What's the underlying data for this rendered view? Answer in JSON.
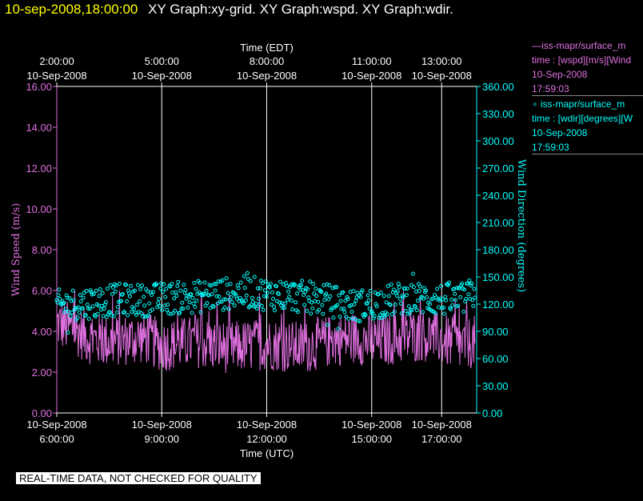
{
  "header": {
    "timestamp": "10-sep-2008,18:00:00",
    "graph_titles": "XY Graph:xy-grid.  XY Graph:wspd.  XY Graph:wdir."
  },
  "legend": [
    {
      "lines": [
        "—iss-mapr/surface_m",
        "time : [wspd][m/s][Wind",
        "10-Sep-2008",
        "17:59:03"
      ],
      "color": "#e070e0"
    },
    {
      "lines": [
        "∘ iss-mapr/surface_m",
        "time : [wdir][degrees][W",
        "10-Sep-2008",
        "17:59:03"
      ],
      "color": "#00ffff"
    }
  ],
  "disclaimer": "REAL-TIME DATA, NOT CHECKED FOR QUALITY",
  "chart_data": {
    "type": "line",
    "top_axis": {
      "label": "Time (EDT)",
      "ticks": [
        {
          "x": 6.0,
          "time": "2:00:00",
          "date": "10-Sep-2008"
        },
        {
          "x": 9.0,
          "time": "5:00:00",
          "date": "10-Sep-2008"
        },
        {
          "x": 12.0,
          "time": "8:00:00",
          "date": "10-Sep-2008"
        },
        {
          "x": 15.0,
          "time": "11:00:00",
          "date": "10-Sep-2008"
        },
        {
          "x": 17.0,
          "time": "13:00:00",
          "date": "10-Sep-2008"
        }
      ]
    },
    "bottom_axis": {
      "label": "Time (UTC)",
      "unit": "hours UTC",
      "range": [
        6.0,
        18.0
      ],
      "ticks": [
        {
          "x": 6.0,
          "date": "10-Sep-2008",
          "time": "6:00:00"
        },
        {
          "x": 9.0,
          "date": "10-Sep-2008",
          "time": "9:00:00"
        },
        {
          "x": 12.0,
          "date": "10-Sep-2008",
          "time": "12:00:00"
        },
        {
          "x": 15.0,
          "date": "10-Sep-2008",
          "time": "15:00:00"
        },
        {
          "x": 17.0,
          "date": "10-Sep-2008",
          "time": "17:00:00"
        }
      ]
    },
    "left_axis": {
      "label": "Wind Speed (m/s)",
      "range": [
        0,
        16
      ],
      "ticks": [
        "0.00",
        "2.00",
        "4.00",
        "6.00",
        "8.00",
        "10.00",
        "12.00",
        "14.00",
        "16.00"
      ],
      "color": "#e070e0"
    },
    "right_axis": {
      "label": "Wind Direction (degrees)",
      "range": [
        0,
        360
      ],
      "ticks": [
        "0.00",
        "30.00",
        "60.00",
        "90.00",
        "120.00",
        "150.00",
        "180.00",
        "210.00",
        "240.00",
        "270.00",
        "300.00",
        "330.00",
        "360.00"
      ],
      "color": "#00ffff"
    },
    "grid": "vertical lines at bottom-axis ticks",
    "series": [
      {
        "name": "iss-mapr/surface_m time : [wspd][m/s][Wind",
        "axis": "left",
        "type": "line",
        "color": "#e070e0",
        "approx_summary": "Wind speed fluctuates roughly 1-6 m/s around a mean near 3.5 m/s from 6:00 to ~18:00 UTC",
        "x": [
          6.0,
          6.5,
          7.0,
          7.5,
          8.0,
          8.5,
          9.0,
          9.5,
          10.0,
          10.5,
          11.0,
          11.5,
          12.0,
          12.5,
          13.0,
          13.5,
          14.0,
          14.5,
          15.0,
          15.5,
          16.0,
          16.5,
          17.0,
          17.5,
          17.95
        ],
        "y": [
          4.4,
          4.1,
          3.6,
          3.5,
          3.6,
          3.7,
          3.3,
          3.4,
          3.5,
          3.3,
          3.2,
          3.3,
          3.4,
          3.3,
          3.2,
          3.4,
          3.6,
          3.7,
          3.5,
          3.6,
          3.7,
          3.8,
          3.6,
          3.3,
          3.5
        ]
      },
      {
        "name": "iss-mapr/surface_m time : [wdir][degrees][W",
        "axis": "right",
        "type": "scatter",
        "color": "#00ffff",
        "approx_summary": "Wind direction scattered between ~95 and ~160 degrees, centered around 125 degrees",
        "x": [
          6.0,
          6.5,
          7.0,
          7.5,
          8.0,
          8.5,
          9.0,
          9.5,
          10.0,
          10.5,
          11.0,
          11.5,
          12.0,
          12.5,
          13.0,
          13.5,
          14.0,
          14.5,
          15.0,
          15.5,
          16.0,
          16.5,
          17.0,
          17.5,
          17.95
        ],
        "y": [
          118,
          120,
          122,
          124,
          125,
          124,
          126,
          127,
          128,
          130,
          132,
          133,
          131,
          130,
          128,
          126,
          122,
          118,
          120,
          124,
          127,
          126,
          125,
          124,
          132
        ]
      }
    ]
  }
}
